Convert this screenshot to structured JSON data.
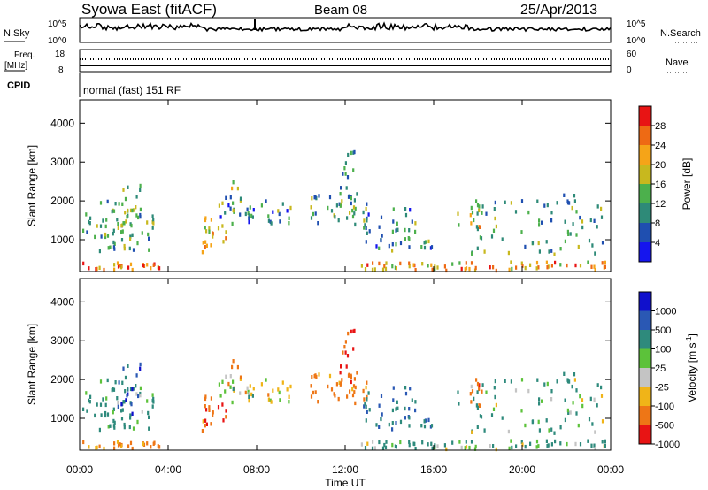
{
  "header": {
    "station": "Syowa East (fitACF)",
    "beam": "Beam 08",
    "date": "25/Apr/2013"
  },
  "noise_panel": {
    "left_label": "N.Sky",
    "right_label": "N.Search",
    "top_tick": "10^5",
    "bottom_tick": "10^0"
  },
  "freq_panel": {
    "left_label": "Freq.",
    "left_unit": "[MHz]",
    "left_ticks": [
      "18",
      "8"
    ],
    "right_label": "Nave",
    "right_ticks": [
      "60",
      "0"
    ]
  },
  "cpid": {
    "label": "CPID",
    "mode": "normal (fast) 151 RF"
  },
  "x_axis": {
    "label": "Time UT",
    "ticks": [
      "00:00",
      "04:00",
      "08:00",
      "12:00",
      "16:00",
      "20:00",
      "00:00"
    ],
    "range_hours": [
      0,
      24
    ]
  },
  "y_axis": {
    "label": "Slant Range [km]",
    "ticks": [
      1000,
      2000,
      3000,
      4000
    ],
    "range_km": [
      180,
      4600
    ]
  },
  "power_scale": {
    "label": "Power [dB]",
    "ticks": [
      "4",
      "8",
      "12",
      "16",
      "20",
      "24",
      "28"
    ],
    "colors": [
      "#1515ee",
      "#1f4fb0",
      "#2e8a78",
      "#4cb04c",
      "#c8b81e",
      "#f5a418",
      "#ee6a14",
      "#e81414"
    ]
  },
  "velocity_scale": {
    "label": "Velocity [m s^-1]",
    "label_main": "Velocity [m s",
    "label_sup": "-1",
    "label_end": "]",
    "ticks": [
      "1000",
      "500",
      "100",
      "25",
      "-25",
      "-100",
      "-500",
      "-1000"
    ],
    "colors": [
      "#1010cc",
      "#2a58b4",
      "#2e8a7c",
      "#5cc23a",
      "#c4c4c4",
      "#f0b418",
      "#ee7616",
      "#e81414"
    ]
  },
  "chart_data": {
    "type": "heatmap",
    "title": "Syowa East (fitACF)",
    "xlabel": "Time UT",
    "ylabel": "Slant Range [km]",
    "x_range_hours": [
      0,
      24
    ],
    "y_range_km": [
      180,
      4600
    ],
    "panels": [
      "Power [dB]",
      "Velocity [m s^-1]"
    ],
    "scatter_regions": [
      {
        "t": [
          0.0,
          3.6
        ],
        "r": [
          200,
          420
        ],
        "density": 0.95,
        "power": 26,
        "velocity": -200
      },
      {
        "t": [
          0.1,
          3.4
        ],
        "r": [
          700,
          2000
        ],
        "density": 0.45,
        "power": 12,
        "velocity": 150
      },
      {
        "t": [
          1.7,
          2.7
        ],
        "r": [
          1000,
          2400
        ],
        "density": 0.45,
        "power": 14,
        "velocity": 700
      },
      {
        "t": [
          5.5,
          6.6
        ],
        "r": [
          650,
          1600
        ],
        "density": 0.6,
        "power": 20,
        "velocity": -400
      },
      {
        "t": [
          6.2,
          9.6
        ],
        "r": [
          1400,
          2100
        ],
        "density": 0.5,
        "power": 10,
        "velocity": 0
      },
      {
        "t": [
          6.8,
          7.3
        ],
        "r": [
          2000,
          2600
        ],
        "density": 0.4,
        "power": 16,
        "velocity": -300
      },
      {
        "t": [
          10.4,
          13.0
        ],
        "r": [
          1350,
          2150
        ],
        "density": 0.55,
        "power": 12,
        "velocity": -200
      },
      {
        "t": [
          11.6,
          12.5
        ],
        "r": [
          1900,
          3300
        ],
        "density": 0.4,
        "power": 14,
        "velocity": -600
      },
      {
        "t": [
          12.8,
          15.9
        ],
        "r": [
          700,
          1800
        ],
        "density": 0.4,
        "power": 10,
        "velocity": 400
      },
      {
        "t": [
          12.6,
          23.8
        ],
        "r": [
          200,
          420
        ],
        "density": 0.85,
        "power": 22,
        "velocity": 100
      },
      {
        "t": [
          17.6,
          18.4
        ],
        "r": [
          1300,
          2000
        ],
        "density": 0.55,
        "power": 18,
        "velocity": -400
      },
      {
        "t": [
          17.0,
          23.6
        ],
        "r": [
          600,
          2000
        ],
        "density": 0.22,
        "power": 12,
        "velocity": 100
      },
      {
        "t": [
          21.8,
          22.6
        ],
        "r": [
          1000,
          2200
        ],
        "density": 0.3,
        "power": 10,
        "velocity": 200
      }
    ]
  }
}
